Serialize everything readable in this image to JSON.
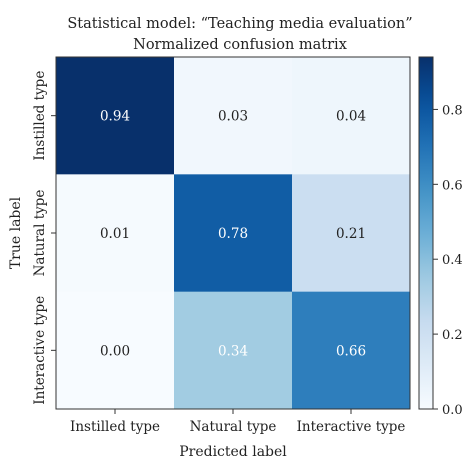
{
  "chart_data": {
    "type": "heatmap",
    "title": "Statistical model: “Teaching media evaluation”",
    "subtitle": "Normalized confusion matrix",
    "xlabel": "Predicted label",
    "ylabel": "True label",
    "x_categories": [
      "Instilled type",
      "Natural type",
      "Interactive type"
    ],
    "y_categories": [
      "Instilled type",
      "Natural type",
      "Interactive type"
    ],
    "cell_labels": [
      [
        "0.94",
        "0.03",
        "0.04"
      ],
      [
        "0.01",
        "0.78",
        "0.21"
      ],
      [
        "0.00",
        "0.34",
        "0.66"
      ]
    ],
    "values": [
      [
        0.94,
        0.03,
        0.04
      ],
      [
        0.01,
        0.78,
        0.21
      ],
      [
        0.0,
        0.34,
        0.66
      ]
    ],
    "colormap": "Blues",
    "vmin": 0.0,
    "vmax": 0.94,
    "colorbar": {
      "ticks": [
        0.0,
        0.2,
        0.4,
        0.6,
        0.8
      ],
      "tick_labels": [
        "0.0",
        "0.2",
        "0.4",
        "0.6",
        "0.8"
      ]
    },
    "grid": false,
    "legend": "colorbar-right"
  }
}
